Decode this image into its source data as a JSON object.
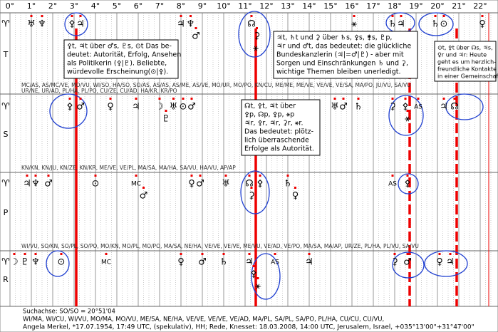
{
  "scale": {
    "range": [
      0,
      22.5
    ],
    "ticks": [
      {
        "value": 0,
        "label": "0°"
      },
      {
        "value": 1,
        "label": "1°"
      },
      {
        "value": 2,
        "label": "2°"
      },
      {
        "value": 3,
        "label": "3°"
      },
      {
        "value": 4,
        "label": "4°"
      },
      {
        "value": 5,
        "label": "5°"
      },
      {
        "value": 6,
        "label": "6°"
      },
      {
        "value": 7,
        "label": "7°"
      },
      {
        "value": 8,
        "label": "8°"
      },
      {
        "value": 9,
        "label": "9°"
      },
      {
        "value": 10,
        "label": "10°"
      },
      {
        "value": 11,
        "label": "11°"
      },
      {
        "value": 12,
        "label": "12°"
      },
      {
        "value": 13,
        "label": "13°"
      },
      {
        "value": 14,
        "label": "14°"
      },
      {
        "value": 15,
        "label": "15°"
      },
      {
        "value": 16,
        "label": "16°"
      },
      {
        "value": 17,
        "label": "17°"
      },
      {
        "value": 18,
        "label": "18°"
      },
      {
        "value": 19,
        "label": "19°"
      },
      {
        "value": 20,
        "label": "20°"
      },
      {
        "value": 21,
        "label": "21°"
      },
      {
        "value": 22,
        "label": "22°"
      }
    ]
  },
  "markers": [
    3.1,
    11.5,
    18.7,
    20.9,
    22.4
  ],
  "rows": [
    {
      "label": "T",
      "start": "♈",
      "glyphs": [
        {
          "s": "♅",
          "deg": 1.0
        },
        {
          "s": "♆",
          "deg": 1.5
        },
        {
          "s": "⚴",
          "deg": 2.9
        },
        {
          "s": "♃",
          "deg": 3.3
        },
        {
          "s": "♃",
          "deg": 8.0
        },
        {
          "s": "♆",
          "deg": 8.45
        },
        {
          "s": "♂",
          "deg": 8.7
        },
        {
          "s": "☊",
          "deg": 11.3
        },
        {
          "s": "⚳",
          "deg": 11.55
        },
        {
          "s": "⚹",
          "deg": 11.5
        },
        {
          "s": "⚹",
          "deg": 16.1
        },
        {
          "s": "♄",
          "deg": 17.9
        },
        {
          "s": "♃",
          "deg": 18.3
        },
        {
          "s": "♄",
          "deg": 19.9
        },
        {
          "s": "⊙",
          "deg": 20.3
        },
        {
          "s": "♀",
          "deg": 22.1
        }
      ],
      "midpoints": [
        "MC/AS, AS/MC/VE, MO/VU, WI/SO, HA/SO, SO/AS, AS/AS, AS/ME, AS/VE, MO/UR, MO/PO, KN/CU, ME/ME, ME/VE, VE/VE, VE/SA, MA/PO, JU/VU, SA/VU",
        "UR/NE, UR/AD, PL/HA, PL/PO, CU/ZE, CU/AD, HA/KR, KR/PO"
      ]
    },
    {
      "label": "S",
      "start": "♈",
      "glyphs": [
        {
          "s": "⚴",
          "deg": 2.8
        },
        {
          "s": "♂",
          "deg": 3.3
        },
        {
          "s": "♀",
          "deg": 4.7
        },
        {
          "s": "♃",
          "deg": 5.9
        },
        {
          "s": "☽",
          "deg": 7.0
        },
        {
          "s": "♇",
          "deg": 7.3
        },
        {
          "s": "♅",
          "deg": 7.65
        },
        {
          "s": "⊙",
          "deg": 8.1
        },
        {
          "s": "♂",
          "deg": 8.5
        },
        {
          "s": "♅",
          "deg": 15.2
        },
        {
          "s": "♂",
          "deg": 15.6
        },
        {
          "s": "♄",
          "deg": 16.3
        },
        {
          "s": "⚳",
          "deg": 17.9
        },
        {
          "s": "⚴",
          "deg": 18.5
        },
        {
          "s": "⚹",
          "deg": 18.6
        },
        {
          "s": "AS",
          "deg": 19.1
        },
        {
          "s": "♃",
          "deg": 20.3
        },
        {
          "s": "☊",
          "deg": 20.8
        }
      ],
      "midpoints": []
    },
    {
      "label": "P",
      "start": "♈",
      "glyphs": [
        {
          "s": "♃",
          "deg": 0.8
        },
        {
          "s": "♆",
          "deg": 1.2
        },
        {
          "s": "♂",
          "deg": 1.8
        },
        {
          "s": "⊙",
          "deg": 4.0
        },
        {
          "s": "MC",
          "deg": 5.9
        },
        {
          "s": "♂",
          "deg": 6.25
        },
        {
          "s": "♀",
          "deg": 8.5
        },
        {
          "s": "♂",
          "deg": 8.9
        },
        {
          "s": "♅",
          "deg": 10.1
        },
        {
          "s": "☊",
          "deg": 11.2
        },
        {
          "s": "⚳",
          "deg": 11.3
        },
        {
          "s": "⚴",
          "deg": 11.7
        },
        {
          "s": "♄",
          "deg": 13.0
        },
        {
          "s": "♀",
          "deg": 13.35
        },
        {
          "s": "AS",
          "deg": 17.9
        },
        {
          "s": "⚴",
          "deg": 18.6
        }
      ],
      "midpoints": [
        "KN/KN, KN/JU, KN/ZE, KN/KR, ME/VE, VE/PL, MA/SA, MA/HA, SA/VU, HA/VU, AP/AP"
      ]
    },
    {
      "label": "R",
      "start": "♈",
      "glyphs": [
        {
          "s": "☽",
          "deg": 0.2
        },
        {
          "s": "♇",
          "deg": 0.7
        },
        {
          "s": "♆",
          "deg": 1.2
        },
        {
          "s": "⊙",
          "deg": 2.4
        },
        {
          "s": "MC",
          "deg": 4.5
        },
        {
          "s": "♀",
          "deg": 8.0
        },
        {
          "s": "♂",
          "deg": 9.0
        },
        {
          "s": "♄",
          "deg": 10.0
        },
        {
          "s": "♃",
          "deg": 11.2
        },
        {
          "s": "⚴",
          "deg": 11.4
        },
        {
          "s": "⚹",
          "deg": 11.6
        },
        {
          "s": "AS",
          "deg": 12.4
        },
        {
          "s": "♃",
          "deg": 14.0
        },
        {
          "s": "⚳",
          "deg": 18.0
        },
        {
          "s": "♂",
          "deg": 18.6
        },
        {
          "s": "♀",
          "deg": 20.1
        },
        {
          "s": "♃",
          "deg": 20.6
        }
      ],
      "midpoints": [
        "WI/VU, SO/KN, SO/PL, SO/PO, MO/KN, MO/PL, MO/PO, MA/SA, NE/HA, VE/VE, VE/VE, ME/VU, VE/AD, VE/PO, MA/SA, MA/AP, UR/ZE, PL/HA, PL/VU, SA/VU"
      ]
    }
  ],
  "notes": [
    [
      "⚴t, ♃t über ♂s, ♇s, ⊙t Das be-",
      "deutet: Autorität, Erfolg, Ansehen",
      "als Politikerin (⚴|♇). Beliebte,",
      "würdevolle Erscheinung(⊙|⚴)."
    ],
    [
      "♃t, ♄t und ⚳ über ♄s, ⚴s, ⚵s, ♇p,",
      "♃r und ♂t, das bedeutet: die glückliche",
      "Bundeskanzlerin (♃|=♂|♇) - aber mit",
      "Sorgen und Einschränkungen ♄ und ⚳,",
      "wichtige Themen bleiben unerledigt."
    ],
    [
      "⊙t, ⚴t über ☊s, ♃s,",
      "♀r und ♃r: Heute",
      "geht es um herzlich-",
      "freundliche Kontakte",
      "in einer Gemeinschaft"
    ],
    [
      "☊t, ⚴t, ♃t über",
      "⚴p, ☊p, ⚴p, ⚹p",
      "♃r, ⚴r, ♃r, ⚳r, ⚹r.",
      "Das bedeutet: plötz-",
      "lich überraschende",
      "Erfolge als Autorität."
    ]
  ],
  "footer": [
    "Suchachse: SO/SO = 20°51'04",
    "WI/MA, WI/CU, WI/VU, MO/MA, MO/VU, ME/SA, NE/HA, VE/VE, VE/VE, VE/AD, MA/PL, SA/PL, SA/PO, PL/HA, CU/CU, CU/VU,",
    "Angela Merkel, *17.07.1954, 17:49 UTC, (spekulativ), HH; Rede, Knesset: 18.03.2008, 14:00 UTC, Jerusalem, Israel, +035°13'00\"+31°47'00\""
  ]
}
